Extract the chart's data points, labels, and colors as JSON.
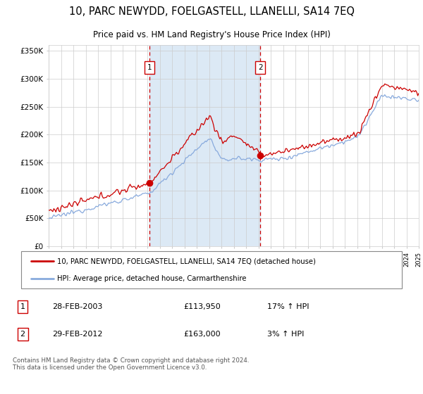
{
  "title": "10, PARC NEWYDD, FOELGASTELL, LLANELLI, SA14 7EQ",
  "subtitle": "Price paid vs. HM Land Registry's House Price Index (HPI)",
  "legend_line1": "10, PARC NEWYDD, FOELGASTELL, LLANELLI, SA14 7EQ (detached house)",
  "legend_line2": "HPI: Average price, detached house, Carmarthenshire",
  "transaction1_label": "1",
  "transaction1_date": "28-FEB-2003",
  "transaction1_price": "£113,950",
  "transaction1_hpi": "17% ↑ HPI",
  "transaction2_label": "2",
  "transaction2_date": "29-FEB-2012",
  "transaction2_price": "£163,000",
  "transaction2_hpi": "3% ↑ HPI",
  "copyright": "Contains HM Land Registry data © Crown copyright and database right 2024.\nThis data is licensed under the Open Government Licence v3.0.",
  "ylim": [
    0,
    360000
  ],
  "yticks": [
    0,
    50000,
    100000,
    150000,
    200000,
    250000,
    300000,
    350000
  ],
  "ytick_labels": [
    "£0",
    "£50K",
    "£100K",
    "£150K",
    "£200K",
    "£250K",
    "£300K",
    "£350K"
  ],
  "start_year": 1995,
  "end_year": 2025,
  "transaction1_year": 2003.15,
  "transaction2_year": 2012.15,
  "transaction1_value": 113950,
  "transaction2_value": 163000,
  "shading_color": "#dce9f5",
  "line1_color": "#cc0000",
  "line2_color": "#88aadd",
  "grid_color": "#cccccc",
  "background_color": "#ffffff",
  "vline_color": "#cc0000",
  "fig_width": 6.0,
  "fig_height": 5.6,
  "dpi": 100
}
